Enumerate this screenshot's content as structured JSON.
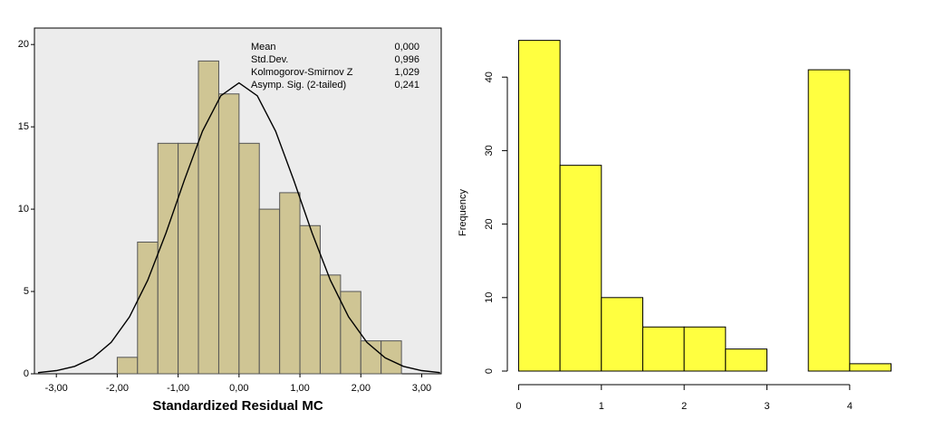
{
  "chart_data": [
    {
      "type": "histogram",
      "xlabel": "Standardized Residual MC",
      "bins": [
        -2.0,
        -1.667,
        -1.333,
        -1.0,
        -0.667,
        -0.333,
        0,
        0.333,
        0.667,
        1.0,
        1.333,
        1.667,
        2.0,
        2.333,
        2.667
      ],
      "values": [
        1,
        8,
        14,
        14,
        19,
        17,
        14,
        10,
        11,
        9,
        6,
        5,
        2,
        2
      ],
      "color": "#cfc594",
      "xlim": [
        -3.36,
        3.32
      ],
      "ylim": [
        0,
        21
      ],
      "xticks": [
        {
          "value": -3,
          "label": "-3,00"
        },
        {
          "value": -2,
          "label": "-2,00"
        },
        {
          "value": -1,
          "label": "-1,00"
        },
        {
          "value": 0,
          "label": "0,00"
        },
        {
          "value": 1,
          "label": "1,00"
        },
        {
          "value": 2,
          "label": "2,00"
        },
        {
          "value": 3,
          "label": "3,00"
        }
      ],
      "yticks": [
        0,
        5,
        10,
        15,
        20
      ],
      "normal_curve": {
        "x": [
          -3.3,
          -3.0,
          -2.7,
          -2.4,
          -2.1,
          -1.8,
          -1.5,
          -1.2,
          -0.9,
          -0.6,
          -0.3,
          0,
          0.3,
          0.6,
          0.9,
          1.2,
          1.5,
          1.8,
          2.1,
          2.4,
          2.7,
          3.0,
          3.3
        ],
        "y": [
          0.07,
          0.19,
          0.45,
          0.97,
          1.91,
          3.45,
          5.68,
          8.55,
          11.75,
          14.74,
          16.89,
          17.67,
          16.89,
          14.74,
          11.75,
          8.55,
          5.68,
          3.45,
          1.91,
          0.97,
          0.45,
          0.19,
          0.07
        ]
      },
      "stats": [
        [
          "Mean",
          "0,000"
        ],
        [
          "Std.Dev.",
          "0,996"
        ],
        [
          "Kolmogorov-Smirnov Z",
          "1,029"
        ],
        [
          "Asymp. Sig. (2-tailed)",
          "0,241"
        ]
      ]
    },
    {
      "type": "histogram",
      "ylabel": "Frequency",
      "bins": [
        0,
        0.5,
        1,
        1.5,
        2,
        2.5,
        3,
        3.5,
        4,
        4.5
      ],
      "values": [
        45,
        28,
        10,
        6,
        6,
        3,
        0,
        41,
        1
      ],
      "color": "#ffff40",
      "xlim": [
        -0.18,
        4.68
      ],
      "ylim": [
        0,
        46.8
      ],
      "xticks": [
        0,
        1,
        2,
        3,
        4
      ],
      "yticks": [
        0,
        10,
        20,
        30,
        40
      ]
    }
  ]
}
